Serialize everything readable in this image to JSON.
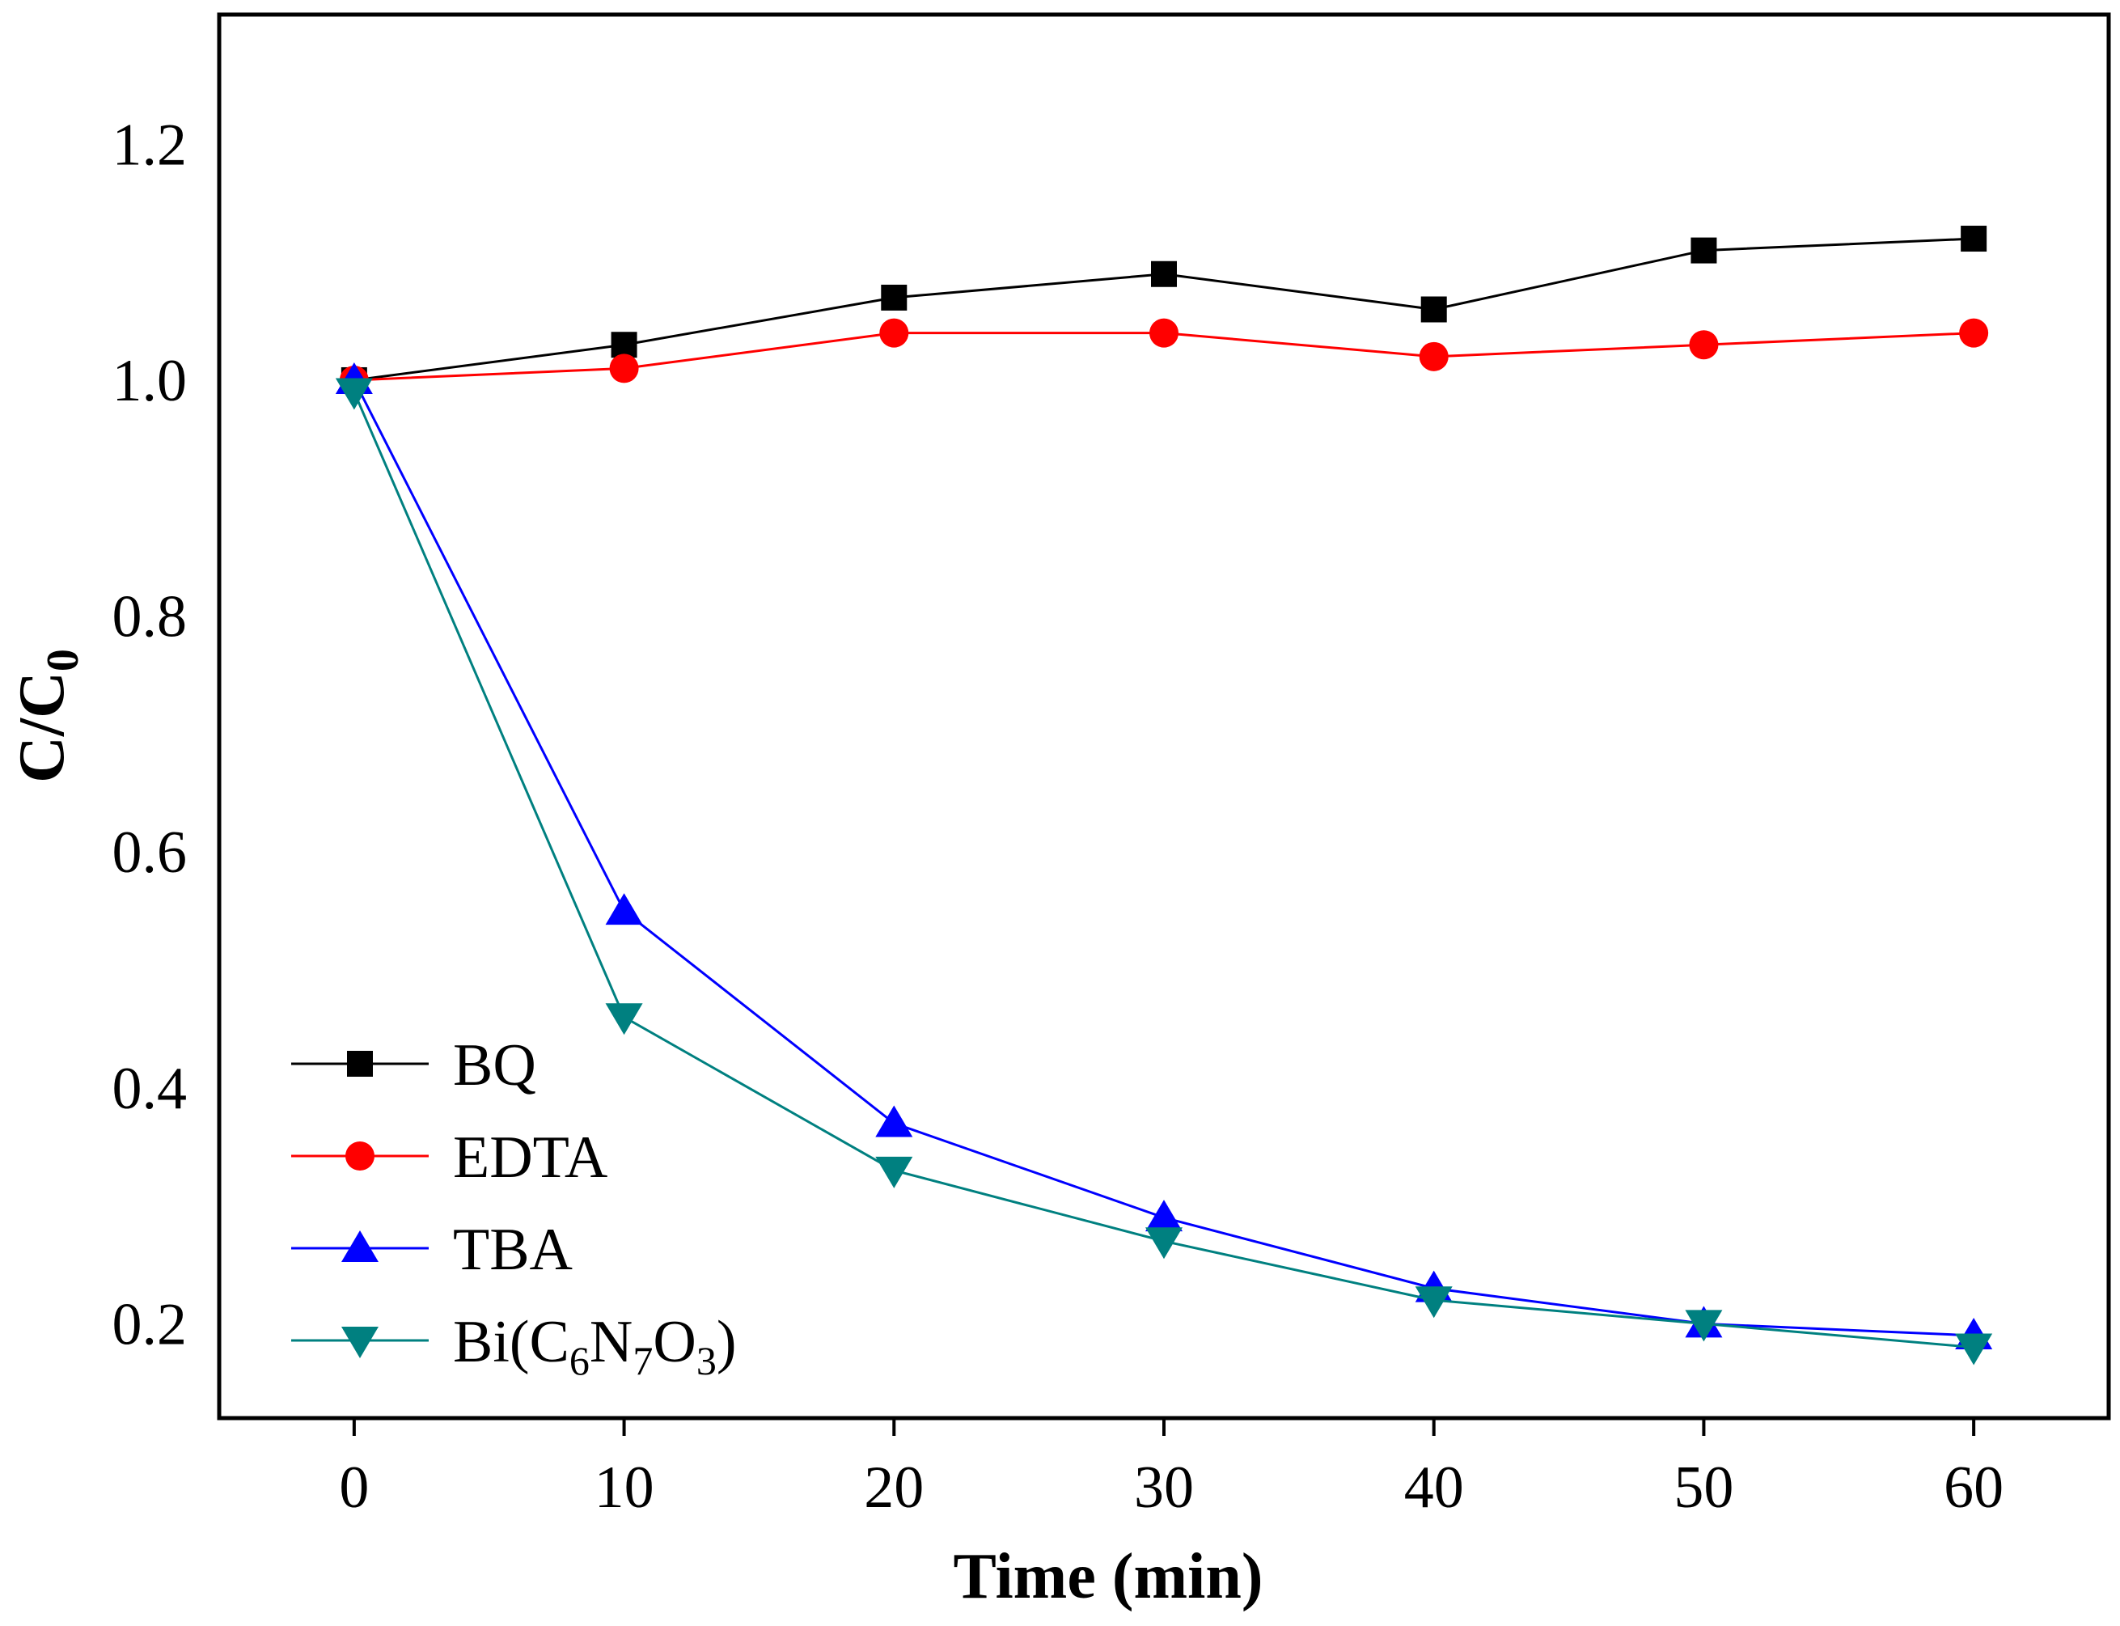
{
  "chart_data": {
    "type": "line",
    "xlabel": "Time (min)",
    "ylabel": {
      "main": "C/C",
      "sub": "0"
    },
    "xlim": [
      -5,
      65
    ],
    "ylim": [
      0.12,
      1.31
    ],
    "xticks": [
      "0",
      "10",
      "20",
      "30",
      "40",
      "50",
      "60"
    ],
    "yticks": [
      "0.2",
      "0.4",
      "0.6",
      "0.8",
      "1.0",
      "1.2"
    ],
    "grid": false,
    "legend_position": "bottom-left",
    "x": [
      0,
      10,
      20,
      30,
      40,
      50,
      60
    ],
    "series": [
      {
        "name": "BQ",
        "color": "#000000",
        "marker": "square",
        "values": [
          1.0,
          1.03,
          1.07,
          1.09,
          1.06,
          1.11,
          1.12
        ]
      },
      {
        "name": "EDTA",
        "color": "#ff0000",
        "marker": "circle",
        "values": [
          1.0,
          1.01,
          1.04,
          1.04,
          1.02,
          1.03,
          1.04
        ]
      },
      {
        "name": "TBA",
        "color": "#0000ff",
        "marker": "triangle-up",
        "values": [
          1.0,
          0.55,
          0.37,
          0.29,
          0.23,
          0.2,
          0.19
        ]
      },
      {
        "name": "Bi(C6N7O3)",
        "color": "#008080",
        "marker": "triangle-down",
        "label_parts": [
          [
            "Bi(C",
            ""
          ],
          [
            "6",
            "sub"
          ],
          [
            "N",
            ""
          ],
          [
            "7",
            "sub"
          ],
          [
            "O",
            ""
          ],
          [
            "3",
            "sub"
          ],
          [
            ")",
            ""
          ]
        ],
        "values": [
          0.99,
          0.46,
          0.33,
          0.27,
          0.22,
          0.2,
          0.18
        ]
      }
    ]
  }
}
